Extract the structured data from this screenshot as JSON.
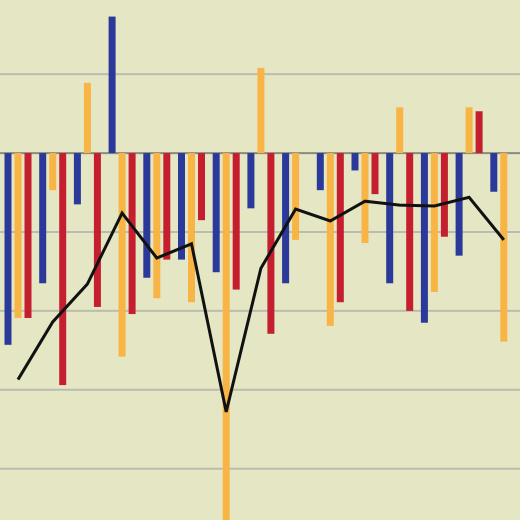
{
  "chart_data": {
    "type": "bar",
    "categories": [
      null,
      null,
      null,
      null,
      null,
      null,
      null,
      null,
      null,
      null,
      null,
      null,
      null,
      null,
      null
    ],
    "series": [
      {
        "color": "#2b3a9a",
        "values": [
          -24.3,
          -16.5,
          -6.5,
          17.3,
          -15.8,
          -13.5,
          -15.1,
          -7.0,
          -16.5,
          -4.7,
          -2.2,
          -16.5,
          -21.5,
          -13.0,
          -4.9
        ]
      },
      {
        "color": "#f8b545",
        "values": [
          -20.9,
          -4.7,
          8.9,
          -25.8,
          -18.4,
          -18.9,
          -47.7,
          10.8,
          -11.0,
          -21.9,
          -11.4,
          5.8,
          -17.6,
          5.8,
          -23.9
        ]
      },
      {
        "color": "#c41e2f",
        "values": [
          -20.9,
          -29.4,
          -19.5,
          -20.4,
          -13.5,
          -8.5,
          -17.3,
          -22.9,
          null,
          -18.9,
          -5.2,
          -20.0,
          -10.6,
          5.3,
          null
        ]
      },
      {
        "type": "line",
        "color": "#111111",
        "values": [
          -28.7,
          -21.4,
          -16.6,
          -7.6,
          -13.3,
          -11.5,
          -32.8,
          -14.6,
          -7.1,
          -8.6,
          -6.1,
          -6.6,
          -6.7,
          -5.6,
          -11.0
        ]
      }
    ],
    "ylim": [
      -46.5,
      19.4
    ],
    "yticks": [
      10,
      0,
      -10,
      -20,
      -30,
      -40
    ],
    "grid": true
  }
}
